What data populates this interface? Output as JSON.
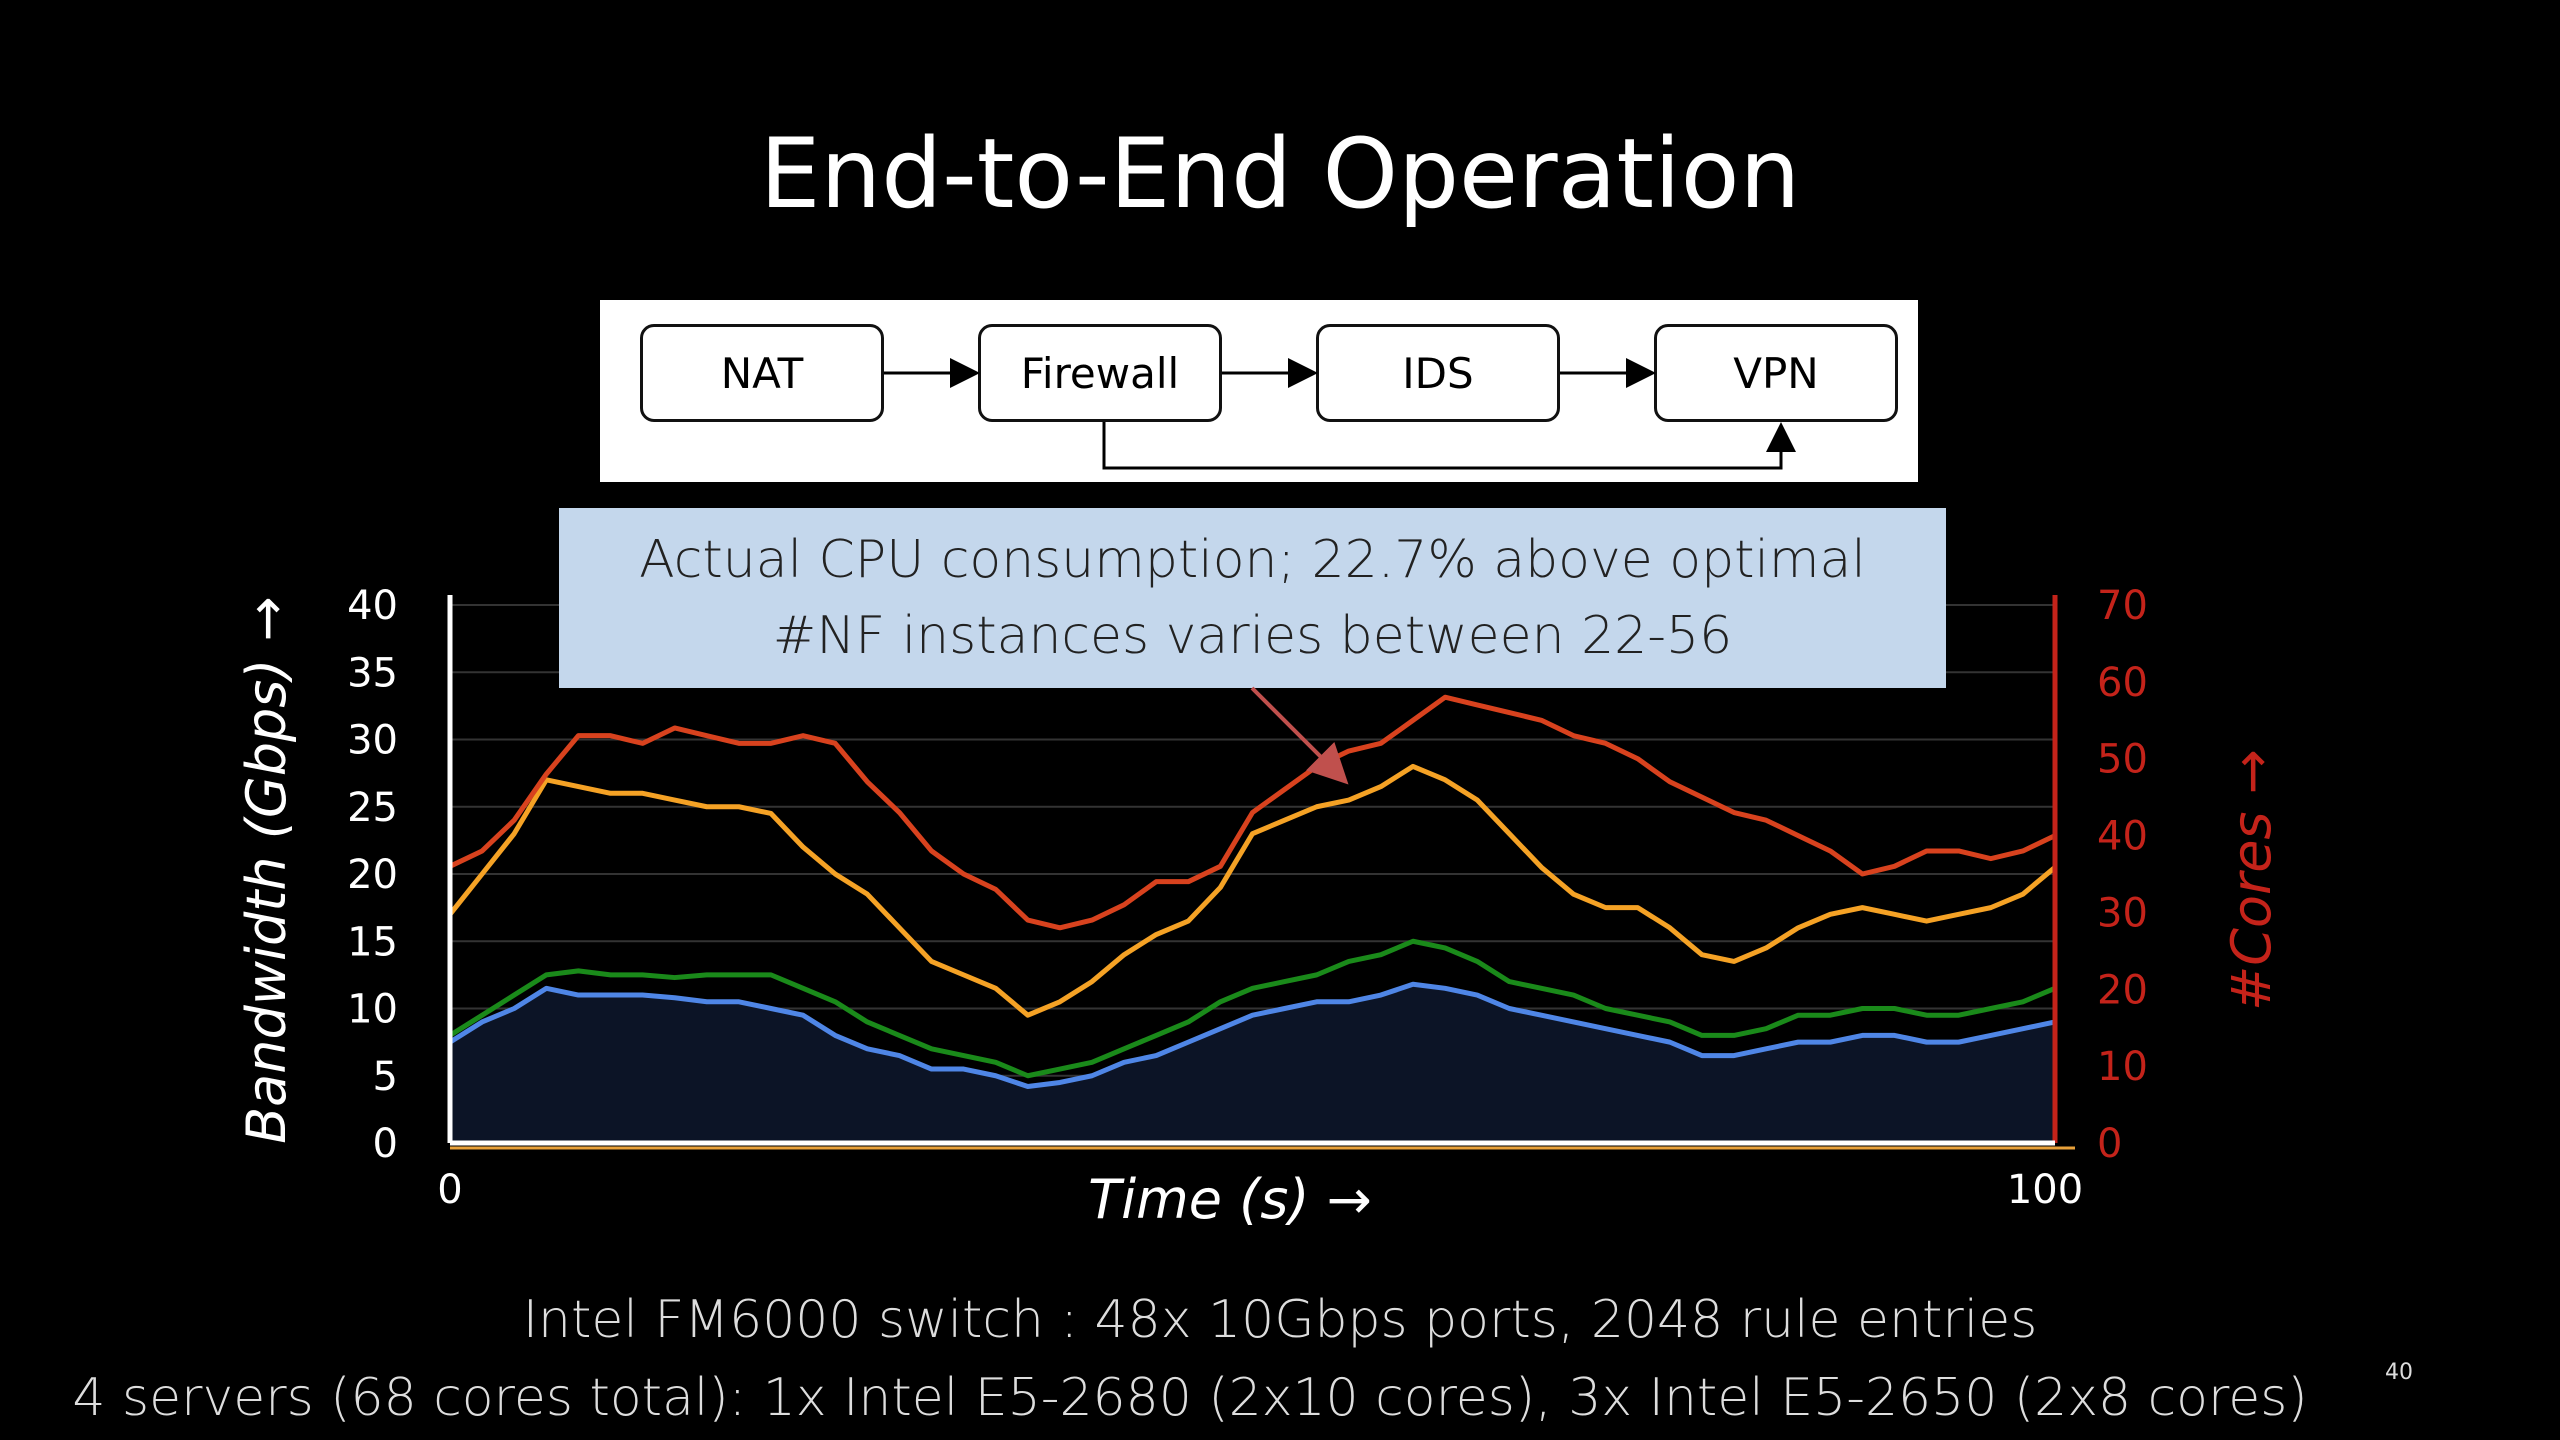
{
  "slide": {
    "title": "End-to-End Operation",
    "page_number": "40"
  },
  "diagram": {
    "nodes": [
      "NAT",
      "Firewall",
      "IDS",
      "VPN"
    ],
    "edges": [
      [
        "NAT",
        "Firewall"
      ],
      [
        "Firewall",
        "IDS"
      ],
      [
        "IDS",
        "VPN"
      ],
      [
        "Firewall",
        "VPN"
      ]
    ]
  },
  "callout": {
    "line1": "Actual CPU consumption; 22.7% above optimal",
    "line2": "#NF instances varies between 22-56"
  },
  "chart_data": {
    "type": "line",
    "xlabel": "Time (s) →",
    "ylabel": "Bandwidth (Gbps) →",
    "y2label": "#Cores →",
    "xlim": [
      0,
      100
    ],
    "ylim": [
      0,
      40
    ],
    "y2lim": [
      0,
      70
    ],
    "x_ticks": [
      "0",
      "100"
    ],
    "y_ticks": [
      "0",
      "5",
      "10",
      "15",
      "20",
      "25",
      "30",
      "35",
      "40"
    ],
    "y2_ticks": [
      "0",
      "10",
      "20",
      "30",
      "40",
      "50",
      "60",
      "70"
    ],
    "grid": true,
    "x": [
      0,
      2,
      4,
      6,
      8,
      10,
      12,
      14,
      16,
      18,
      20,
      22,
      24,
      26,
      28,
      30,
      32,
      34,
      36,
      38,
      40,
      42,
      44,
      46,
      48,
      50,
      52,
      54,
      56,
      58,
      60,
      62,
      64,
      66,
      68,
      70,
      72,
      74,
      76,
      78,
      80,
      82,
      84,
      86,
      88,
      90,
      92,
      94,
      96,
      98,
      100
    ],
    "series": [
      {
        "color": "#4f86e6",
        "axis": "left",
        "filled": true,
        "values": [
          7.5,
          9,
          10,
          11.5,
          11,
          11,
          11,
          10.8,
          10.5,
          10.5,
          10,
          9.5,
          8,
          7,
          6.5,
          5.5,
          5.5,
          5,
          4.2,
          4.5,
          5,
          6,
          6.5,
          7.5,
          8.5,
          9.5,
          10,
          10.5,
          10.5,
          11,
          11.8,
          11.5,
          11,
          10,
          9.5,
          9,
          8.5,
          8,
          7.5,
          6.5,
          6.5,
          7,
          7.5,
          7.5,
          8,
          8,
          7.5,
          7.5,
          8,
          8.5,
          9
        ]
      },
      {
        "color": "#1a8a1a",
        "axis": "left",
        "filled": false,
        "values": [
          8,
          9.5,
          11,
          12.5,
          12.8,
          12.5,
          12.5,
          12.3,
          12.5,
          12.5,
          12.5,
          11.5,
          10.5,
          9,
          8,
          7,
          6.5,
          6,
          5,
          5.5,
          6,
          7,
          8,
          9,
          10.5,
          11.5,
          12,
          12.5,
          13.5,
          14,
          15,
          14.5,
          13.5,
          12,
          11.5,
          11,
          10,
          9.5,
          9,
          8,
          8,
          8.5,
          9.5,
          9.5,
          10,
          10,
          9.5,
          9.5,
          10,
          10.5,
          11.5
        ]
      },
      {
        "color": "#f5a225",
        "axis": "left",
        "filled": false,
        "values": [
          17,
          20,
          23,
          27,
          26.5,
          26,
          26,
          25.5,
          25,
          25,
          24.5,
          22,
          20,
          18.5,
          16,
          13.5,
          12.5,
          11.5,
          9.5,
          10.5,
          12,
          14,
          15.5,
          16.5,
          19,
          23,
          24,
          25,
          25.5,
          26.5,
          28,
          27,
          25.5,
          23,
          20.5,
          18.5,
          17.5,
          17.5,
          16,
          14,
          13.5,
          14.5,
          16,
          17,
          17.5,
          17,
          16.5,
          17,
          17.5,
          18.5,
          20.5
        ]
      },
      {
        "color": "#d8421e",
        "axis": "right",
        "filled": false,
        "values": [
          36,
          38,
          42,
          48,
          53,
          53,
          52,
          54,
          53,
          52,
          52,
          53,
          52,
          47,
          43,
          38,
          35,
          33,
          29,
          28,
          29,
          31,
          34,
          34,
          36,
          43,
          46,
          49,
          51,
          52,
          55,
          58,
          57,
          56,
          55,
          53,
          52,
          50,
          47,
          45,
          43,
          42,
          40,
          38,
          35,
          36,
          38,
          38,
          37,
          38,
          40
        ]
      }
    ]
  }
}
